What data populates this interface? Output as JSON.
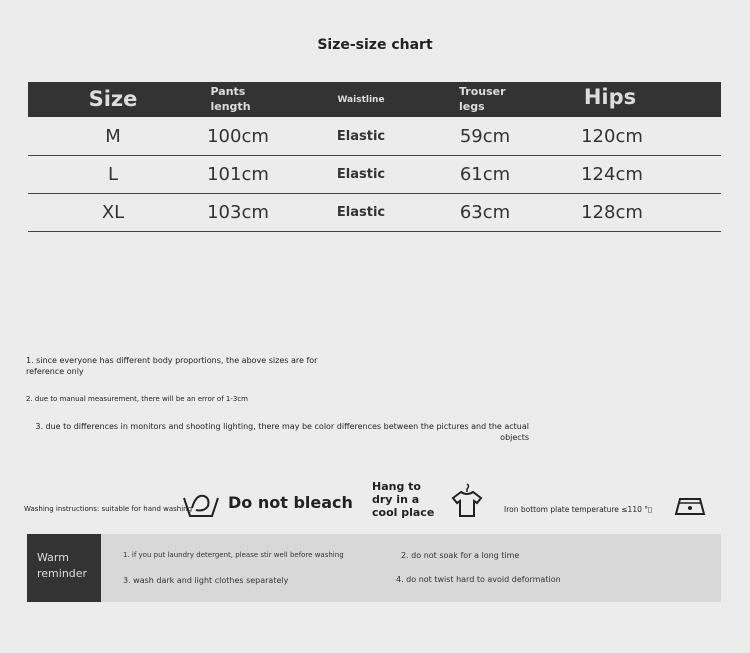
{
  "title": "Size-size chart",
  "table": {
    "headers": [
      "Size",
      "Pants length",
      "Waistline",
      "Trouser legs",
      "Hips"
    ],
    "rows": [
      [
        "M",
        "100cm",
        "Elastic",
        "59cm",
        "120cm"
      ],
      [
        "L",
        "101cm",
        "Elastic",
        "61cm",
        "124cm"
      ],
      [
        "XL",
        "103cm",
        "Elastic",
        "63cm",
        "128cm"
      ]
    ]
  },
  "notes": [
    "1. since everyone has different body proportions, the above sizes are for reference only",
    "2. due to manual measurement, there will be an error of 1-3cm",
    "3. due to differences in monitors and shooting lighting, there may be color differences between the pictures and the actual objects"
  ],
  "washing": {
    "hand_wash": "Washing instructions: suitable for hand washing",
    "bleach": "Do not bleach",
    "dry": "Hang to dry in a cool place",
    "iron": "Iron bottom plate temperature ≤110 °▯",
    "icons": [
      "hand-wash-icon",
      "t-shirt-hanger-icon",
      "iron-icon"
    ]
  },
  "reminder": {
    "label": "Warm reminder",
    "items": [
      "1. if you put laundry detergent, please stir well before washing",
      "2. do not soak for a long time",
      "3. wash dark and light clothes separately",
      "4. do not twist hard to avoid deformation"
    ]
  }
}
